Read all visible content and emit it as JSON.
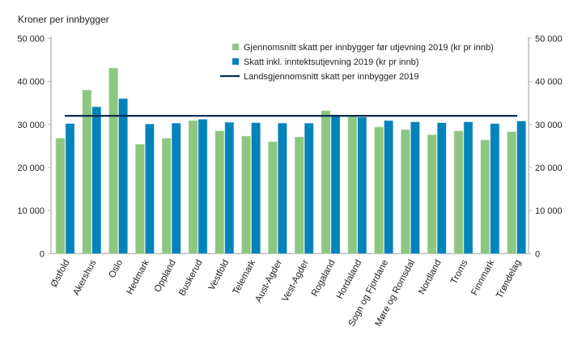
{
  "chart_data": {
    "type": "bar",
    "ylabel": "Kroner per innbygger",
    "ylim": [
      0,
      50000
    ],
    "yticks": [
      0,
      10000,
      20000,
      30000,
      40000,
      50000
    ],
    "ytick_labels": [
      "0",
      "10 000",
      "20 000",
      "30 000",
      "40 000",
      "50 000"
    ],
    "grid": false,
    "legend_position": "top-right",
    "categories": [
      "Østfold",
      "Akershus",
      "Oslo",
      "Hedmark",
      "Oppland",
      "Buskerud",
      "Vestfold",
      "Telemark",
      "Aust-Agder",
      "Vest-Agder",
      "Rogaland",
      "Hordaland",
      "Sogn og Fjordane",
      "Møre og Romsdal",
      "Nordland",
      "Troms",
      "Finnmark",
      "Trøndelag"
    ],
    "series": [
      {
        "name": "Gjennomsnitt skatt per innbygger før utjevning 2019 (kr pr innb)",
        "color": "#8dc680",
        "values": [
          26800,
          38000,
          43100,
          25400,
          26800,
          30900,
          28500,
          27300,
          26000,
          27100,
          33200,
          31800,
          29400,
          28800,
          27600,
          28500,
          26400,
          28300
        ]
      },
      {
        "name": "Skatt inkl. inntektsutjevning 2019 (kr pr innb)",
        "color": "#0082bb",
        "values": [
          30200,
          34100,
          36000,
          30100,
          30300,
          31200,
          30500,
          30400,
          30300,
          30300,
          32200,
          31700,
          30900,
          30600,
          30400,
          30600,
          30200,
          30800
        ]
      }
    ],
    "reference_line": {
      "name": "Landsgjennomsnitt skatt per innbygger 2019",
      "value": 32000,
      "color": "#0b2d54"
    }
  }
}
